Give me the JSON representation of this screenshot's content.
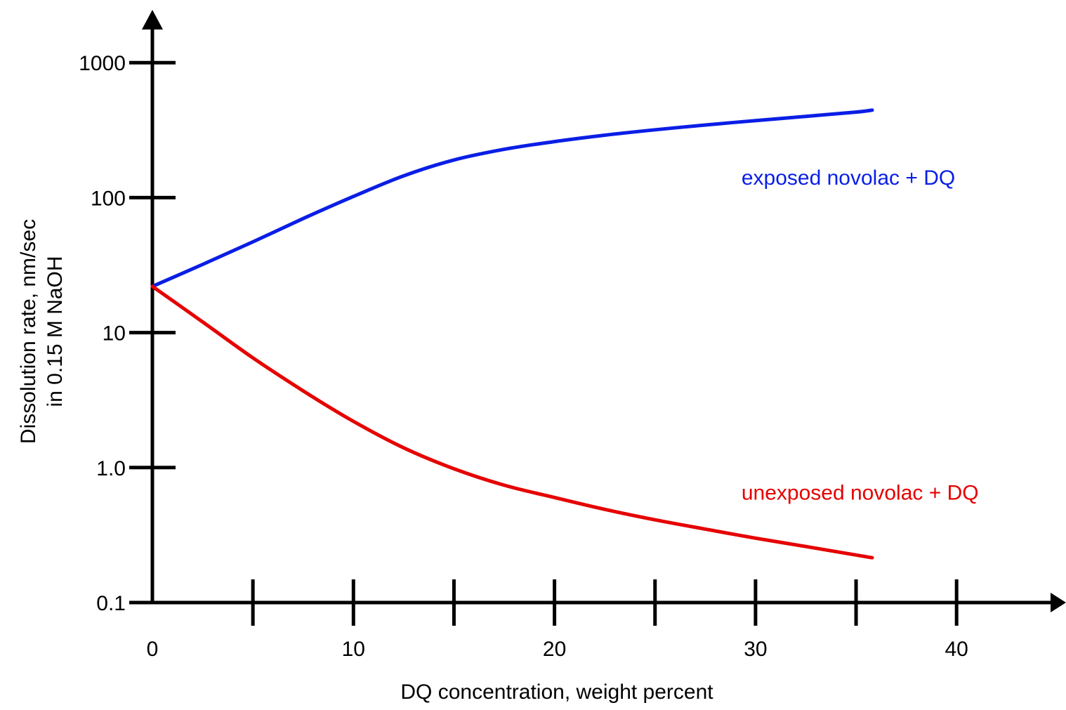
{
  "chart_data": {
    "type": "line",
    "title": "",
    "xlabel": "DQ concentration, weight percent",
    "ylabel_lines": [
      "Dissolution rate, nm/sec",
      "in 0.15 M NaOH"
    ],
    "x_scale": "linear",
    "y_scale": "log",
    "xlim": [
      0,
      45
    ],
    "ylim": [
      0.1,
      2000
    ],
    "x_ticks": [
      0,
      5,
      10,
      15,
      20,
      25,
      30,
      35,
      40
    ],
    "x_tick_labels": [
      {
        "value": 0,
        "label": "0"
      },
      {
        "value": 10,
        "label": "10"
      },
      {
        "value": 20,
        "label": "20"
      },
      {
        "value": 30,
        "label": "30"
      },
      {
        "value": 40,
        "label": "40"
      }
    ],
    "y_ticks": [
      {
        "value": 0.1,
        "label": "0.1"
      },
      {
        "value": 1,
        "label": "1.0"
      },
      {
        "value": 10,
        "label": "10"
      },
      {
        "value": 100,
        "label": "100"
      },
      {
        "value": 1000,
        "label": "1000"
      }
    ],
    "grid": false,
    "legend": "none",
    "series": [
      {
        "name": "exposed novolac + DQ",
        "color": "#0a1ee6",
        "label_anchor": {
          "x": 29.3,
          "y": 125
        },
        "points": [
          {
            "x": 0,
            "y": 22
          },
          {
            "x": 2.5,
            "y": 32
          },
          {
            "x": 5,
            "y": 47
          },
          {
            "x": 7.5,
            "y": 70
          },
          {
            "x": 10,
            "y": 102
          },
          {
            "x": 12.5,
            "y": 145
          },
          {
            "x": 15,
            "y": 190
          },
          {
            "x": 17.5,
            "y": 228
          },
          {
            "x": 20,
            "y": 260
          },
          {
            "x": 22.5,
            "y": 290
          },
          {
            "x": 25,
            "y": 318
          },
          {
            "x": 27.5,
            "y": 345
          },
          {
            "x": 30,
            "y": 372
          },
          {
            "x": 32.5,
            "y": 400
          },
          {
            "x": 35,
            "y": 430
          },
          {
            "x": 35.8,
            "y": 445
          }
        ]
      },
      {
        "name": "unexposed novolac + DQ",
        "color": "#e60000",
        "label_anchor": {
          "x": 29.3,
          "y": 0.58
        },
        "points": [
          {
            "x": 0,
            "y": 22
          },
          {
            "x": 2.5,
            "y": 12
          },
          {
            "x": 5,
            "y": 6.5
          },
          {
            "x": 7.5,
            "y": 3.7
          },
          {
            "x": 10,
            "y": 2.2
          },
          {
            "x": 12.5,
            "y": 1.4
          },
          {
            "x": 15,
            "y": 0.98
          },
          {
            "x": 17.5,
            "y": 0.74
          },
          {
            "x": 20,
            "y": 0.6
          },
          {
            "x": 22.5,
            "y": 0.49
          },
          {
            "x": 25,
            "y": 0.41
          },
          {
            "x": 27.5,
            "y": 0.35
          },
          {
            "x": 30,
            "y": 0.3
          },
          {
            "x": 32.5,
            "y": 0.26
          },
          {
            "x": 35,
            "y": 0.225
          },
          {
            "x": 35.8,
            "y": 0.215
          }
        ]
      }
    ]
  }
}
